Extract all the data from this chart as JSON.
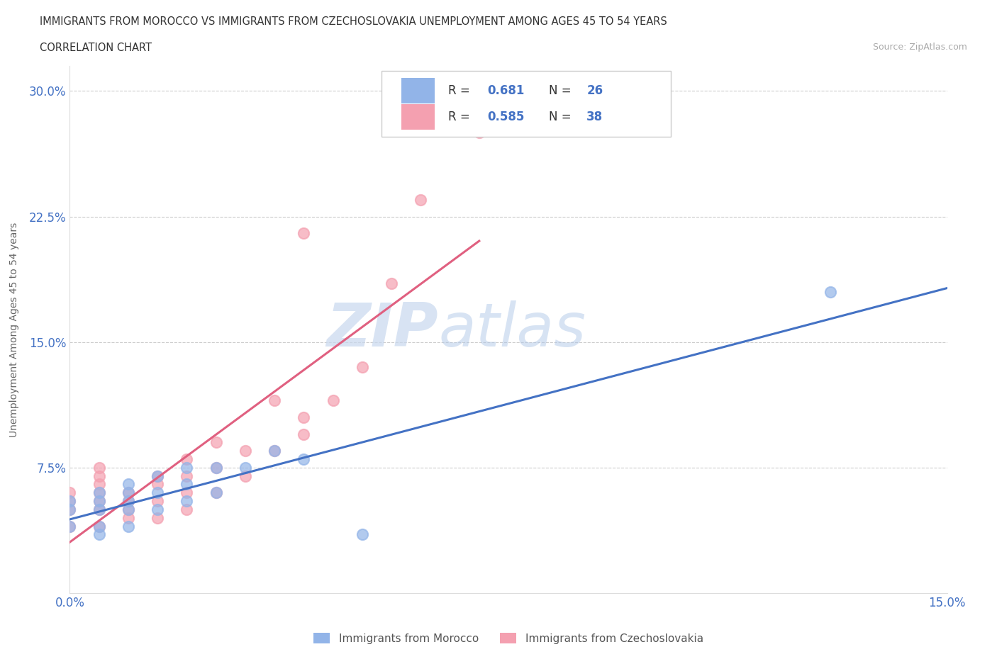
{
  "title_line1": "IMMIGRANTS FROM MOROCCO VS IMMIGRANTS FROM CZECHOSLOVAKIA UNEMPLOYMENT AMONG AGES 45 TO 54 YEARS",
  "title_line2": "CORRELATION CHART",
  "source_text": "Source: ZipAtlas.com",
  "ylabel": "Unemployment Among Ages 45 to 54 years",
  "xlim": [
    0.0,
    0.15
  ],
  "ylim": [
    0.0,
    0.315
  ],
  "xtick_labels": [
    "0.0%",
    "15.0%"
  ],
  "ytick_labels": [
    "7.5%",
    "15.0%",
    "22.5%",
    "30.0%"
  ],
  "ytick_values": [
    0.075,
    0.15,
    0.225,
    0.3
  ],
  "xtick_values": [
    0.0,
    0.15
  ],
  "r_morocco": 0.681,
  "n_morocco": 26,
  "r_czech": 0.585,
  "n_czech": 38,
  "color_morocco": "#92b4e8",
  "color_czech": "#f4a0b0",
  "line_color_morocco": "#4472c4",
  "line_color_czech": "#e06080",
  "watermark_zip": "ZIP",
  "watermark_atlas": "atlas",
  "legend_label_morocco": "Immigrants from Morocco",
  "legend_label_czech": "Immigrants from Czechoslovakia",
  "morocco_x": [
    0.0,
    0.0,
    0.0,
    0.005,
    0.005,
    0.005,
    0.005,
    0.005,
    0.01,
    0.01,
    0.01,
    0.01,
    0.01,
    0.015,
    0.015,
    0.015,
    0.02,
    0.02,
    0.02,
    0.025,
    0.025,
    0.03,
    0.035,
    0.04,
    0.05,
    0.13
  ],
  "morocco_y": [
    0.04,
    0.05,
    0.055,
    0.035,
    0.04,
    0.05,
    0.055,
    0.06,
    0.04,
    0.05,
    0.055,
    0.06,
    0.065,
    0.05,
    0.06,
    0.07,
    0.055,
    0.065,
    0.075,
    0.06,
    0.075,
    0.075,
    0.085,
    0.08,
    0.035,
    0.18
  ],
  "czech_x": [
    0.0,
    0.0,
    0.0,
    0.0,
    0.005,
    0.005,
    0.005,
    0.005,
    0.005,
    0.005,
    0.005,
    0.01,
    0.01,
    0.01,
    0.01,
    0.015,
    0.015,
    0.015,
    0.015,
    0.02,
    0.02,
    0.02,
    0.02,
    0.025,
    0.025,
    0.025,
    0.03,
    0.03,
    0.035,
    0.035,
    0.04,
    0.04,
    0.04,
    0.045,
    0.05,
    0.055,
    0.06,
    0.07
  ],
  "czech_y": [
    0.04,
    0.05,
    0.055,
    0.06,
    0.04,
    0.05,
    0.055,
    0.06,
    0.065,
    0.07,
    0.075,
    0.045,
    0.05,
    0.055,
    0.06,
    0.045,
    0.055,
    0.065,
    0.07,
    0.05,
    0.06,
    0.07,
    0.08,
    0.06,
    0.075,
    0.09,
    0.07,
    0.085,
    0.085,
    0.115,
    0.095,
    0.105,
    0.215,
    0.115,
    0.135,
    0.185,
    0.235,
    0.275
  ]
}
